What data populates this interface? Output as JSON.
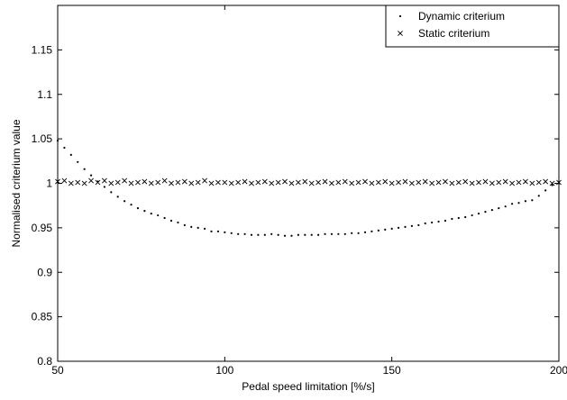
{
  "chart_data": {
    "type": "scatter",
    "title": "",
    "xlabel": "Pedal speed limitation [%/s]",
    "ylabel": "Normalised criterium value",
    "xlim": [
      50,
      200
    ],
    "ylim": [
      0.8,
      1.2
    ],
    "x_ticks": [
      50,
      100,
      150,
      200
    ],
    "x_tick_labels": [
      "50",
      "100",
      "150",
      "200"
    ],
    "y_ticks": [
      0.8,
      0.85,
      0.9,
      0.95,
      1.0,
      1.05,
      1.1,
      1.15
    ],
    "y_tick_labels": [
      "0.8",
      "0.85",
      "0.9",
      "0.95",
      "1",
      "1.05",
      "1.1",
      "1.15"
    ],
    "grid": false,
    "legend_position": "top-right",
    "x": [
      50,
      52,
      54,
      56,
      58,
      60,
      62,
      64,
      66,
      68,
      70,
      72,
      74,
      76,
      78,
      80,
      82,
      84,
      86,
      88,
      90,
      92,
      94,
      96,
      98,
      100,
      102,
      104,
      106,
      108,
      110,
      112,
      114,
      116,
      118,
      120,
      122,
      124,
      126,
      128,
      130,
      132,
      134,
      136,
      138,
      140,
      142,
      144,
      146,
      148,
      150,
      152,
      154,
      156,
      158,
      160,
      162,
      164,
      166,
      168,
      170,
      172,
      174,
      176,
      178,
      180,
      182,
      184,
      186,
      188,
      190,
      192,
      194,
      196,
      198,
      200
    ],
    "series": [
      {
        "name": "Dynamic criterium",
        "marker": "dot",
        "values": [
          1.048,
          1.04,
          1.032,
          1.024,
          1.016,
          1.009,
          1.002,
          0.996,
          0.99,
          0.985,
          0.98,
          0.976,
          0.972,
          0.969,
          0.966,
          0.964,
          0.961,
          0.958,
          0.956,
          0.953,
          0.951,
          0.95,
          0.949,
          0.946,
          0.946,
          0.945,
          0.944,
          0.943,
          0.943,
          0.942,
          0.942,
          0.942,
          0.943,
          0.942,
          0.941,
          0.941,
          0.942,
          0.942,
          0.942,
          0.942,
          0.943,
          0.943,
          0.943,
          0.943,
          0.944,
          0.944,
          0.945,
          0.946,
          0.947,
          0.948,
          0.949,
          0.95,
          0.951,
          0.952,
          0.953,
          0.955,
          0.956,
          0.957,
          0.958,
          0.96,
          0.961,
          0.962,
          0.964,
          0.966,
          0.968,
          0.97,
          0.972,
          0.974,
          0.977,
          0.978,
          0.98,
          0.981,
          0.986,
          0.992,
          0.998,
          1.0
        ]
      },
      {
        "name": "Static criterium",
        "marker": "x",
        "values": [
          1.002,
          1.003,
          1.0,
          1.001,
          1.0,
          1.003,
          1.001,
          1.003,
          1.0,
          1.001,
          1.003,
          1.0,
          1.001,
          1.002,
          1.0,
          1.001,
          1.003,
          1.0,
          1.001,
          1.002,
          1.0,
          1.001,
          1.003,
          1.0,
          1.001,
          1.001,
          1.0,
          1.001,
          1.002,
          1.0,
          1.001,
          1.002,
          1.0,
          1.001,
          1.002,
          1.0,
          1.001,
          1.002,
          1.0,
          1.001,
          1.002,
          1.0,
          1.001,
          1.002,
          1.0,
          1.001,
          1.002,
          1.0,
          1.001,
          1.002,
          1.0,
          1.001,
          1.002,
          1.0,
          1.001,
          1.002,
          1.0,
          1.001,
          1.002,
          1.0,
          1.001,
          1.002,
          1.0,
          1.001,
          1.002,
          1.0,
          1.001,
          1.002,
          1.0,
          1.001,
          1.002,
          1.0,
          1.001,
          1.002,
          1.0,
          1.001
        ]
      }
    ]
  }
}
